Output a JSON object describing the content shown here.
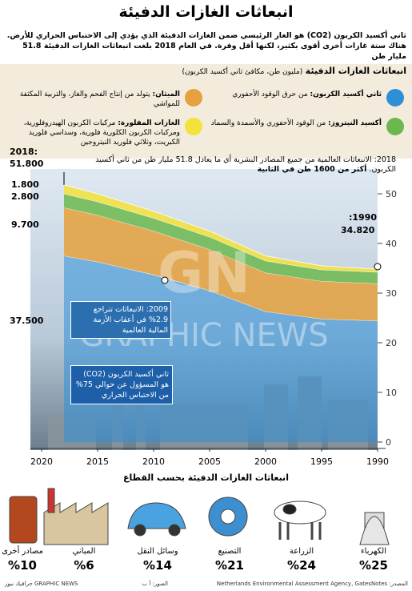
{
  "header": {
    "title": "انبعاثات الغازات الدفيئة",
    "intro": "ثاني أكسيد الكربون (CO2) هو الغاز الرئيسي ضمن الغازات الدفيئة الذي يؤدي إلى الاحتباس الحراري للأرض. هناك ستة غازات أخرى أقوى بكثير، لكنها أقل وفرة. في العام 2018 بلغت انبعاثات الغازات الدفيئة 51.8 مليار طن"
  },
  "chart_data": [
    {
      "type": "stacked-area",
      "title": "انبعاثات الغازات الدفيئة",
      "subtitle": "(مليون طن، مكافئ ثاني أكسيد الكربون)",
      "x": [
        1990,
        1995,
        2000,
        2005,
        2010,
        2015,
        2018
      ],
      "series": [
        {
          "name": "ثاني أكسيد الكربون:",
          "description": "من حرق الوقود الأحفوري",
          "color": "#2e8fd8",
          "values": [
            24.42,
            24.8,
            26.3,
            30.5,
            33.7,
            36.3,
            37.5
          ]
        },
        {
          "name": "الميثان:",
          "description": "يتولد من إنتاج الفحم والغاز، والتربية المكثفة للمواشي",
          "color": "#e5a13c",
          "values": [
            7.5,
            7.6,
            7.8,
            8.3,
            8.8,
            9.4,
            9.7
          ]
        },
        {
          "name": "أكسيد النيتروز:",
          "description": "من الوقود الأحفوري والأسمدة والسماد",
          "color": "#6cb84e",
          "values": [
            2.3,
            2.3,
            2.4,
            2.5,
            2.6,
            2.7,
            2.8
          ]
        },
        {
          "name": "الغازات المفلورة:",
          "description": "مركبات الكربون الهيدروفلورية، ومركبات الكربون الكلورية فلورية، وسداسي فلوريد الكبريت، وثلاثي فلوريد النيتروجين",
          "color": "#f3e23c",
          "values": [
            0.6,
            0.8,
            1.0,
            1.2,
            1.4,
            1.6,
            1.8
          ]
        }
      ],
      "xlim": [
        2021,
        1990
      ],
      "xticks": [
        2020,
        2015,
        2010,
        2005,
        2000,
        1995,
        1990
      ],
      "ylim": [
        0,
        55
      ],
      "yticks": [
        0,
        10,
        20,
        30,
        40,
        50
      ],
      "grid": false,
      "annotations": {
        "y2018": "2018:",
        "total2018": "51.800",
        "fgas2018": "1.800",
        "n2o2018": "2.800",
        "ch42018": "9.700",
        "co22018": "37.500",
        "y1990": ":1990",
        "total1990": "34.820",
        "note2018": "2018: الانبعاثات العالمية من جميع المصادر البشرية أي ما يعادل 51.8 مليار طن من ثاني أكسيد الكربون.",
        "note2018b": "أكثر من 1600 طن في الثانية",
        "note2009": "2009: الانبعاثات تتراجع 2.9% في أعقاب الأزمة المالية العالمية",
        "noteco2": "ثاني أكسيد الكربون (CO2) هو المسؤول عن حوالي 75% من الاحتباس الحراري"
      },
      "watermark": "GRAPHIC NEWS",
      "watermark_logo": "GN"
    },
    {
      "type": "pictogram",
      "title": "انبعاثات الغازات الدفيئة بحسب القطاع",
      "categories": [
        "الكهرباء",
        "الزراعة",
        "التصنيع",
        "وسائل النقل",
        "المباني",
        "مصادر أخرى"
      ],
      "values": [
        25,
        24,
        21,
        14,
        6,
        10
      ],
      "value_labels": [
        "%25",
        "%24",
        "%21",
        "%14",
        "%6",
        "%10"
      ]
    }
  ],
  "footer": {
    "source": "المصدر: Netherlands Environmental Assessment Agency, GatesNotes",
    "photos": "الصور: أ ب",
    "credit": "GRAPHIC NEWS جرافيك نيوز"
  }
}
